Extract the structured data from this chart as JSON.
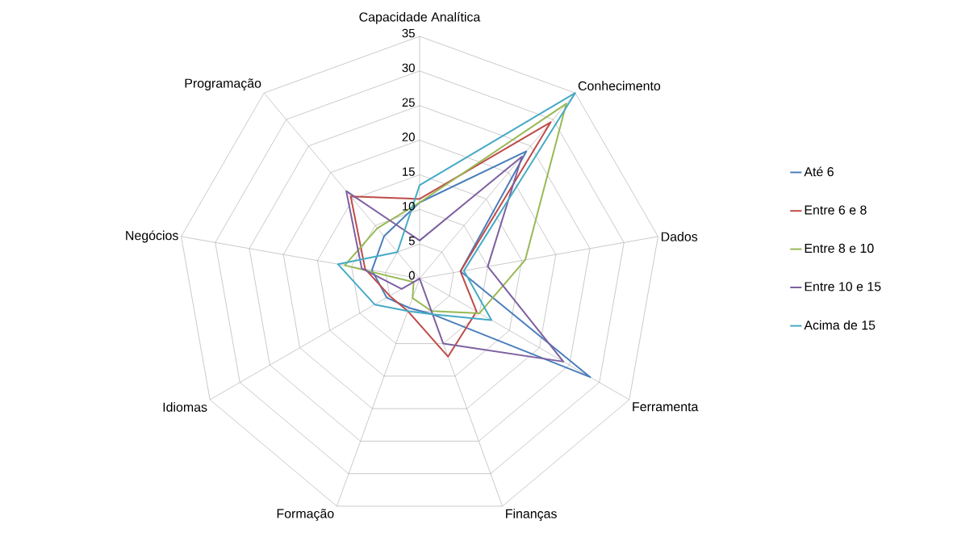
{
  "chart_data": {
    "type": "radar",
    "categories": [
      "Capacidade Analítica",
      "Conhecimento",
      "Dados",
      "Ferramenta",
      "Finanças",
      "Formação",
      "Idiomas",
      "Negócios",
      "Programação"
    ],
    "series": [
      {
        "name": "Até 6",
        "color": "#4a7ebb",
        "values": [
          11,
          24,
          6,
          28.5,
          5.5,
          4.5,
          5.5,
          7,
          8
        ]
      },
      {
        "name": "Entre 6 e 8",
        "color": "#be4b48",
        "values": [
          11.5,
          29.5,
          6,
          9.5,
          12,
          5,
          5,
          8,
          15.5
        ]
      },
      {
        "name": "Entre 8 e 10",
        "color": "#98b954",
        "values": [
          11,
          33,
          15.5,
          10,
          5,
          3,
          1,
          11,
          9.5
        ]
      },
      {
        "name": "Entre 10 e 15",
        "color": "#7d60a0",
        "values": [
          5.5,
          23,
          10,
          24,
          10,
          0,
          3,
          8.5,
          16.5
        ]
      },
      {
        "name": "Acima de 15",
        "color": "#46aac5",
        "values": [
          13.5,
          35,
          6.5,
          12,
          5.5,
          5,
          7.5,
          12,
          5
        ]
      }
    ],
    "ylim": [
      0,
      35
    ],
    "yticks": [
      0,
      5,
      10,
      15,
      20,
      25,
      30,
      35
    ],
    "grid": true,
    "legend": "right"
  }
}
